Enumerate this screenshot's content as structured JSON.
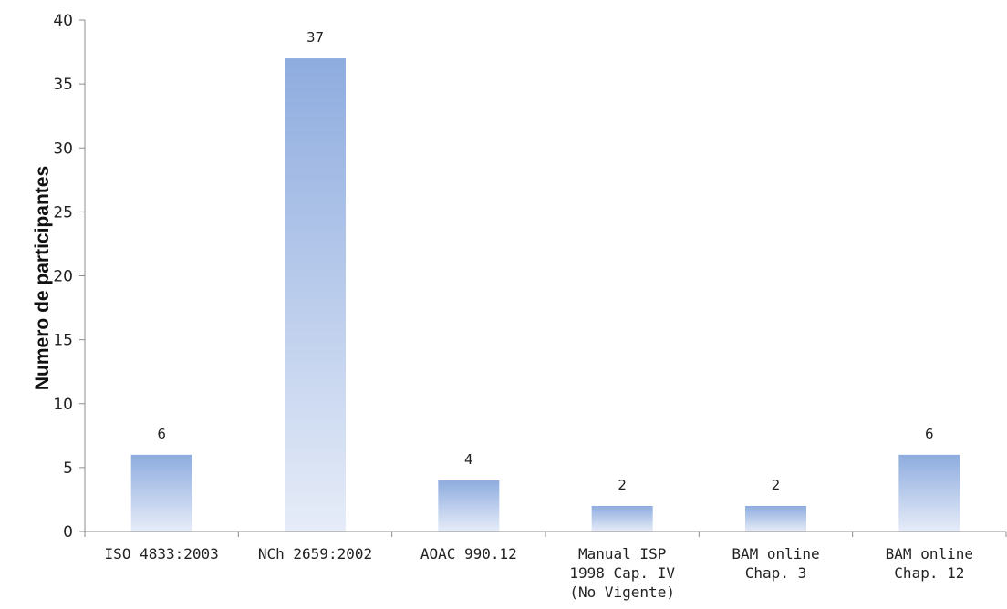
{
  "chart_data": {
    "type": "bar",
    "categories": [
      [
        "ISO 4833:2003"
      ],
      [
        "NCh 2659:2002"
      ],
      [
        "AOAC 990.12"
      ],
      [
        "Manual ISP",
        "1998 Cap. IV",
        "(No Vigente)"
      ],
      [
        "BAM online",
        "Chap. 3"
      ],
      [
        "BAM online",
        "Chap. 12"
      ]
    ],
    "values": [
      6,
      37,
      4,
      2,
      2,
      6
    ],
    "data_labels": [
      "6",
      "37",
      "4",
      "2",
      "2",
      "6"
    ],
    "title": "",
    "xlabel": "",
    "ylabel": "Numero de participantes",
    "ylim": [
      0,
      40
    ],
    "yticks": [
      0,
      5,
      10,
      15,
      20,
      25,
      30,
      35,
      40
    ],
    "grid": false,
    "legend": "none",
    "colors": {
      "bar_top": "#8eacdf",
      "bar_bottom": "#e6ecf8",
      "axis": "#8c8c8c",
      "text": "#222222"
    }
  }
}
